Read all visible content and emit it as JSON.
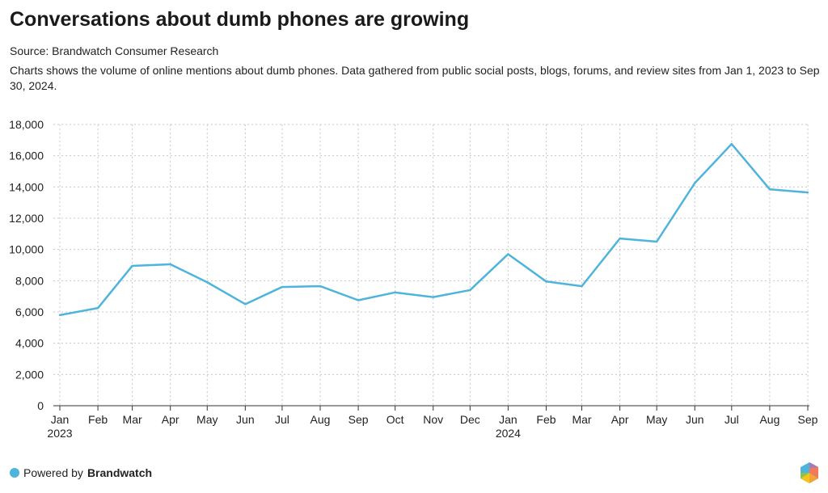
{
  "title": "Conversations about dumb phones are growing",
  "source": "Source: Brandwatch Consumer Research",
  "description": "Charts shows the volume of online mentions about dumb phones. Data gathered from public social posts, blogs, forums, and review sites from Jan 1, 2023 to Sep 30, 2024.",
  "footer": {
    "prefix": "Powered by",
    "brand": "Brandwatch",
    "logo": "brandwatch-hexagon-logo"
  },
  "chart_data": {
    "type": "line",
    "title": "Conversations about dumb phones are growing",
    "xlabel": "",
    "ylabel": "",
    "x": [
      "2023-01-01",
      "2023-02-01",
      "2023-03-01",
      "2023-04-01",
      "2023-05-01",
      "2023-06-01",
      "2023-07-01",
      "2023-08-01",
      "2023-09-01",
      "2023-10-01",
      "2023-11-01",
      "2023-12-01",
      "2024-01-01",
      "2024-02-01",
      "2024-03-01",
      "2024-04-01",
      "2024-05-01",
      "2024-06-01",
      "2024-07-01",
      "2024-08-01",
      "2024-09-01"
    ],
    "x_tick_labels": [
      [
        "Jan",
        "2023"
      ],
      [
        "Feb",
        ""
      ],
      [
        "Mar",
        ""
      ],
      [
        "Apr",
        ""
      ],
      [
        "May",
        ""
      ],
      [
        "Jun",
        ""
      ],
      [
        "Jul",
        ""
      ],
      [
        "Aug",
        ""
      ],
      [
        "Sep",
        ""
      ],
      [
        "Oct",
        ""
      ],
      [
        "Nov",
        ""
      ],
      [
        "Dec",
        ""
      ],
      [
        "Jan",
        "2024"
      ],
      [
        "Feb",
        ""
      ],
      [
        "Mar",
        ""
      ],
      [
        "Apr",
        ""
      ],
      [
        "May",
        ""
      ],
      [
        "Jun",
        ""
      ],
      [
        "Jul",
        ""
      ],
      [
        "Aug",
        ""
      ],
      [
        "Sep",
        ""
      ]
    ],
    "series": [
      {
        "values": [
          5800,
          6250,
          8950,
          9050,
          7900,
          6500,
          7600,
          7650,
          6750,
          7250,
          6950,
          7400,
          9700,
          7950,
          7650,
          10700,
          10500,
          14250,
          16750,
          13850,
          13650
        ],
        "color": "#4fb4dc"
      }
    ],
    "ylim": [
      0,
      18000
    ],
    "y_ticks": [
      0,
      2000,
      4000,
      6000,
      8000,
      10000,
      12000,
      14000,
      16000,
      18000
    ],
    "y_tick_labels": [
      "0",
      "2,000",
      "4,000",
      "6,000",
      "8,000",
      "10,000",
      "12,000",
      "14,000",
      "16,000",
      "18,000"
    ],
    "grid": true
  }
}
